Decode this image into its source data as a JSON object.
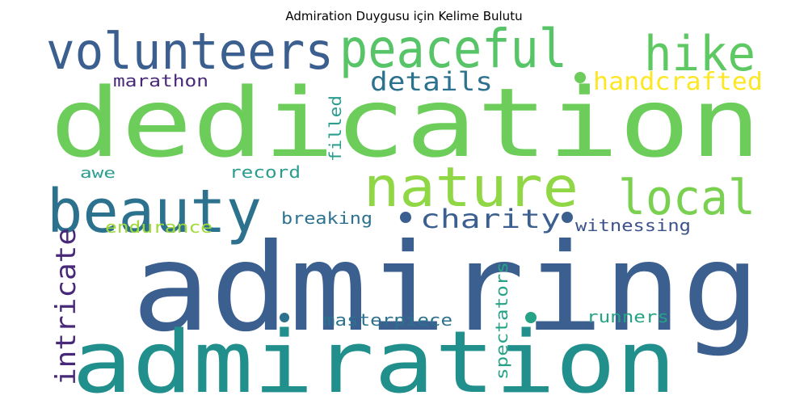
{
  "title": "Admiration Duygusu için Kelime Bulutu",
  "colors": {
    "background": "#ffffff",
    "title": "#000000"
  },
  "words": [
    {
      "text": "dedication",
      "color": "#6ccd5a"
    },
    {
      "text": "admiring",
      "color": "#3b5f8f"
    },
    {
      "text": "admiration",
      "color": "#21908d"
    },
    {
      "text": "volunteers",
      "color": "#3b5f8f"
    },
    {
      "text": "peaceful",
      "color": "#57c567"
    },
    {
      "text": "hike",
      "color": "#5ec962"
    },
    {
      "text": "nature",
      "color": "#8fd744"
    },
    {
      "text": "beauty",
      "color": "#2c728e"
    },
    {
      "text": "local",
      "color": "#7ad151"
    },
    {
      "text": "details",
      "color": "#2c728e"
    },
    {
      "text": "handcrafted",
      "color": "#fde725"
    },
    {
      "text": "charity",
      "color": "#3b5f8f"
    },
    {
      "text": "intricate",
      "color": "#482878"
    },
    {
      "text": "marathon",
      "color": "#482878"
    },
    {
      "text": "filled",
      "color": "#2a9d8f"
    },
    {
      "text": "witnessing",
      "color": "#3b528b"
    },
    {
      "text": "endurance",
      "color": "#a0da39"
    },
    {
      "text": "breaking",
      "color": "#2c728e"
    },
    {
      "text": "record",
      "color": "#2a9d8f"
    },
    {
      "text": "awe",
      "color": "#2a9d8f"
    },
    {
      "text": "masterpiece",
      "color": "#2c728e"
    },
    {
      "text": "spectators",
      "color": "#26a386"
    },
    {
      "text": "runners",
      "color": "#26a386"
    }
  ],
  "dots": [
    {
      "color": "#6ccd5a"
    },
    {
      "color": "#3b5f8f"
    },
    {
      "color": "#3b5f8f"
    },
    {
      "color": "#26a386"
    },
    {
      "color": "#2c728e"
    }
  ]
}
